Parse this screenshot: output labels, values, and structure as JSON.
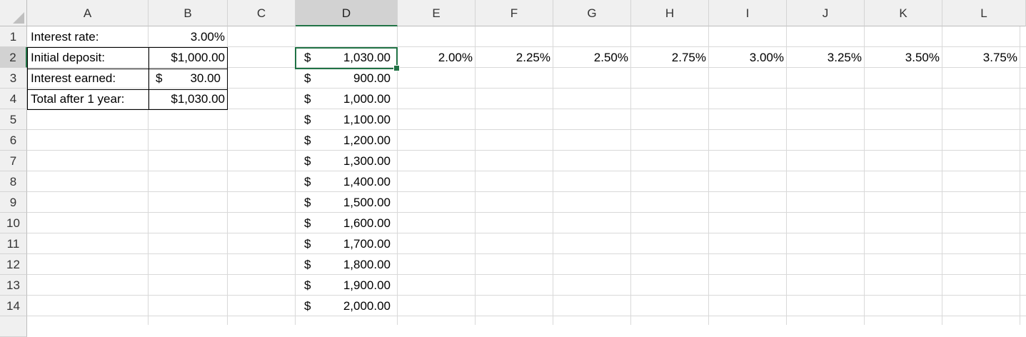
{
  "columns": [
    "A",
    "B",
    "C",
    "D",
    "E",
    "F",
    "G",
    "H",
    "I",
    "J",
    "K",
    "L"
  ],
  "rows": [
    "1",
    "2",
    "3",
    "4",
    "5",
    "6",
    "7",
    "8",
    "9",
    "10",
    "11",
    "12",
    "13",
    "14"
  ],
  "selected": {
    "column": "D",
    "row": "2"
  },
  "labels": {
    "a1": "Interest rate:",
    "a2": "Initial deposit:",
    "a3": "Interest earned:",
    "a4": "Total after 1 year:"
  },
  "values": {
    "b1": "3.00%",
    "b2": "$1,000.00",
    "b3_sym": "$",
    "b3_num": "30.00",
    "b4": "$1,030.00"
  },
  "rates_row2": [
    "2.00%",
    "2.25%",
    "2.50%",
    "2.75%",
    "3.00%",
    "3.25%",
    "3.50%",
    "3.75%"
  ],
  "column_d": [
    {
      "sym": "$",
      "num": "1,030.00"
    },
    {
      "sym": "$",
      "num": "900.00"
    },
    {
      "sym": "$",
      "num": "1,000.00"
    },
    {
      "sym": "$",
      "num": "1,100.00"
    },
    {
      "sym": "$",
      "num": "1,200.00"
    },
    {
      "sym": "$",
      "num": "1,300.00"
    },
    {
      "sym": "$",
      "num": "1,400.00"
    },
    {
      "sym": "$",
      "num": "1,500.00"
    },
    {
      "sym": "$",
      "num": "1,600.00"
    },
    {
      "sym": "$",
      "num": "1,700.00"
    },
    {
      "sym": "$",
      "num": "1,800.00"
    },
    {
      "sym": "$",
      "num": "1,900.00"
    },
    {
      "sym": "$",
      "num": "2,000.00"
    }
  ],
  "colors": {
    "accent": "#217346",
    "header_bg": "#f0f0f0",
    "gridline": "#d9d9d9"
  }
}
